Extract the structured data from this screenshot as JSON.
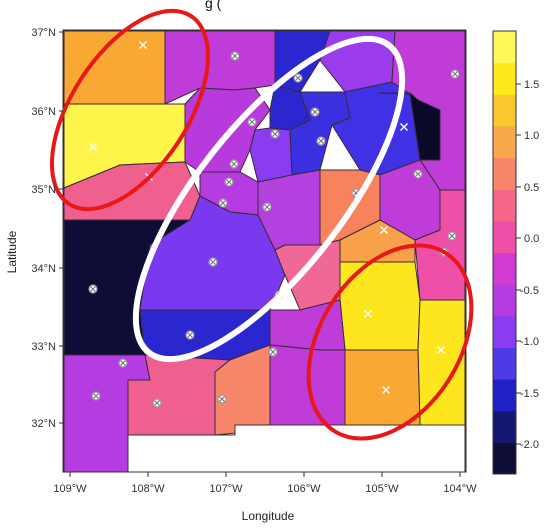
{
  "title": "g (",
  "x_axis": {
    "title": "Longitude",
    "ticks": [
      "109°W",
      "108°W",
      "107°W",
      "106°W",
      "105°W",
      "104°W"
    ]
  },
  "y_axis": {
    "title": "Latitude",
    "ticks": [
      "37°N",
      "36°N",
      "35°N",
      "34°N",
      "33°N",
      "32°N"
    ]
  },
  "colorbar": {
    "ticks": [
      "1.5",
      "1.0",
      "0.5",
      "0.0",
      "-0.5",
      "-1.0",
      "-1.5",
      "-2.0"
    ],
    "range": [
      -2.3,
      2.0
    ],
    "colors": [
      "#0d0d35",
      "#141870",
      "#2020c8",
      "#4f3ae8",
      "#8a3cf0",
      "#b43ce0",
      "#d23cd2",
      "#ee50a8",
      "#f6688a",
      "#f8866a",
      "#f9a84c",
      "#fbc82e",
      "#fde91e",
      "#fff85a"
    ]
  },
  "annotations": {
    "red_ellipses": 2,
    "white_ellipse": 1,
    "ellipse_colors": {
      "red": "#e81818",
      "white": "#ffffff"
    }
  }
}
